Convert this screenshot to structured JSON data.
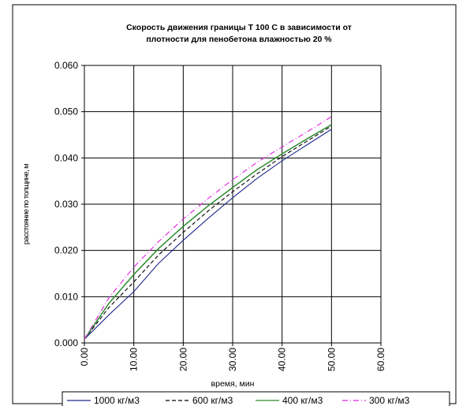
{
  "chart_data": {
    "type": "line",
    "title_line1": "Скорость движения границы  Т 100 С в зависимости от",
    "title_line2": "плотности для пенобетона влажностью 20 %",
    "xlabel": "время, мин",
    "ylabel": "расстояние по толщине, м",
    "xlim": [
      0,
      60
    ],
    "ylim": [
      0,
      0.06
    ],
    "xticks": [
      0,
      10,
      20,
      30,
      40,
      50,
      60
    ],
    "xtick_labels": [
      "0.00",
      "10.00",
      "20.00",
      "30.00",
      "40.00",
      "50.00",
      "60.00"
    ],
    "yticks": [
      0,
      0.01,
      0.02,
      0.03,
      0.04,
      0.05,
      0.06
    ],
    "ytick_labels": [
      "0.000",
      "0.010",
      "0.020",
      "0.030",
      "0.040",
      "0.050",
      "0.060"
    ],
    "grid": true,
    "legend_position": "bottom",
    "series": [
      {
        "name": "1000 кг/м3",
        "color": "#1f2a8c",
        "dash": "solid",
        "x": [
          0,
          5,
          10,
          15,
          20,
          25,
          30,
          35,
          40,
          45,
          50
        ],
        "y": [
          0.0008,
          0.0061,
          0.0111,
          0.0172,
          0.0222,
          0.0269,
          0.0314,
          0.0356,
          0.0394,
          0.0428,
          0.0462
        ]
      },
      {
        "name": "600 кг/м3",
        "color": "#000000",
        "dash": "dashed",
        "x": [
          0,
          5,
          10,
          15,
          20,
          25,
          30,
          35,
          40,
          45,
          50
        ],
        "y": [
          0.0008,
          0.0077,
          0.0132,
          0.019,
          0.0239,
          0.0285,
          0.0327,
          0.0366,
          0.0403,
          0.0436,
          0.0469
        ]
      },
      {
        "name": "400 кг/м3",
        "color": "#2e8b2e",
        "dash": "solid",
        "x": [
          0,
          5,
          10,
          15,
          20,
          25,
          30,
          35,
          40,
          45,
          50
        ],
        "y": [
          0.0008,
          0.0086,
          0.0148,
          0.0204,
          0.0252,
          0.0296,
          0.0336,
          0.0375,
          0.0409,
          0.0441,
          0.0472
        ]
      },
      {
        "name": "300 кг/м3",
        "color": "#e020e0",
        "dash": "dashdot",
        "x": [
          0,
          5,
          10,
          15,
          20,
          25,
          30,
          35,
          40,
          45,
          50
        ],
        "y": [
          0.0008,
          0.0098,
          0.0164,
          0.0219,
          0.0268,
          0.0312,
          0.0353,
          0.0391,
          0.0424,
          0.0456,
          0.0489
        ]
      }
    ]
  }
}
